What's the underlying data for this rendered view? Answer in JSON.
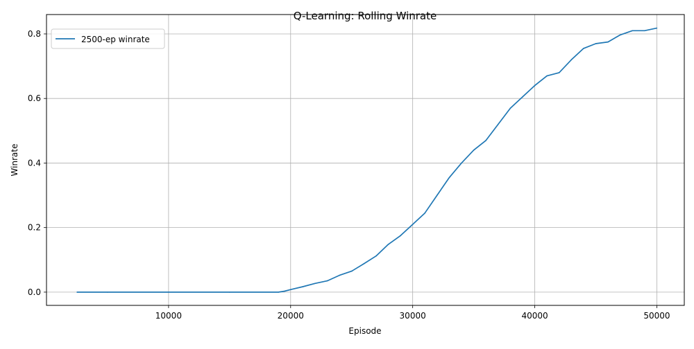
{
  "chart_data": {
    "type": "line",
    "title": "Q-Learning: Rolling Winrate",
    "xlabel": "Episode",
    "ylabel": "Winrate",
    "xlim": [
      0,
      52250
    ],
    "ylim": [
      -0.041,
      0.86
    ],
    "xticks": [
      10000,
      20000,
      30000,
      40000,
      50000
    ],
    "xtick_labels": [
      "10000",
      "20000",
      "30000",
      "40000",
      "50000"
    ],
    "yticks": [
      0.0,
      0.2,
      0.4,
      0.6,
      0.8
    ],
    "ytick_labels": [
      "0.0",
      "0.2",
      "0.4",
      "0.6",
      "0.8"
    ],
    "grid": true,
    "legend_position": "top-left",
    "series": [
      {
        "name": "2500-ep winrate",
        "color": "#1f77b4",
        "x": [
          2500,
          5000,
          10000,
          15000,
          19000,
          19500,
          20000,
          21000,
          22000,
          23000,
          24000,
          25000,
          26000,
          27000,
          28000,
          29000,
          30000,
          31000,
          32000,
          33000,
          34000,
          35000,
          36000,
          37000,
          38000,
          39000,
          40000,
          41000,
          42000,
          43000,
          44000,
          45000,
          46000,
          47000,
          48000,
          49000,
          50000
        ],
        "values": [
          0.0,
          0.0,
          0.0,
          0.0,
          0.0,
          0.003,
          0.008,
          0.017,
          0.027,
          0.035,
          0.052,
          0.065,
          0.088,
          0.112,
          0.148,
          0.175,
          0.21,
          0.245,
          0.3,
          0.355,
          0.4,
          0.44,
          0.47,
          0.52,
          0.57,
          0.605,
          0.64,
          0.67,
          0.68,
          0.72,
          0.755,
          0.77,
          0.775,
          0.797,
          0.81,
          0.81,
          0.818
        ]
      }
    ]
  }
}
